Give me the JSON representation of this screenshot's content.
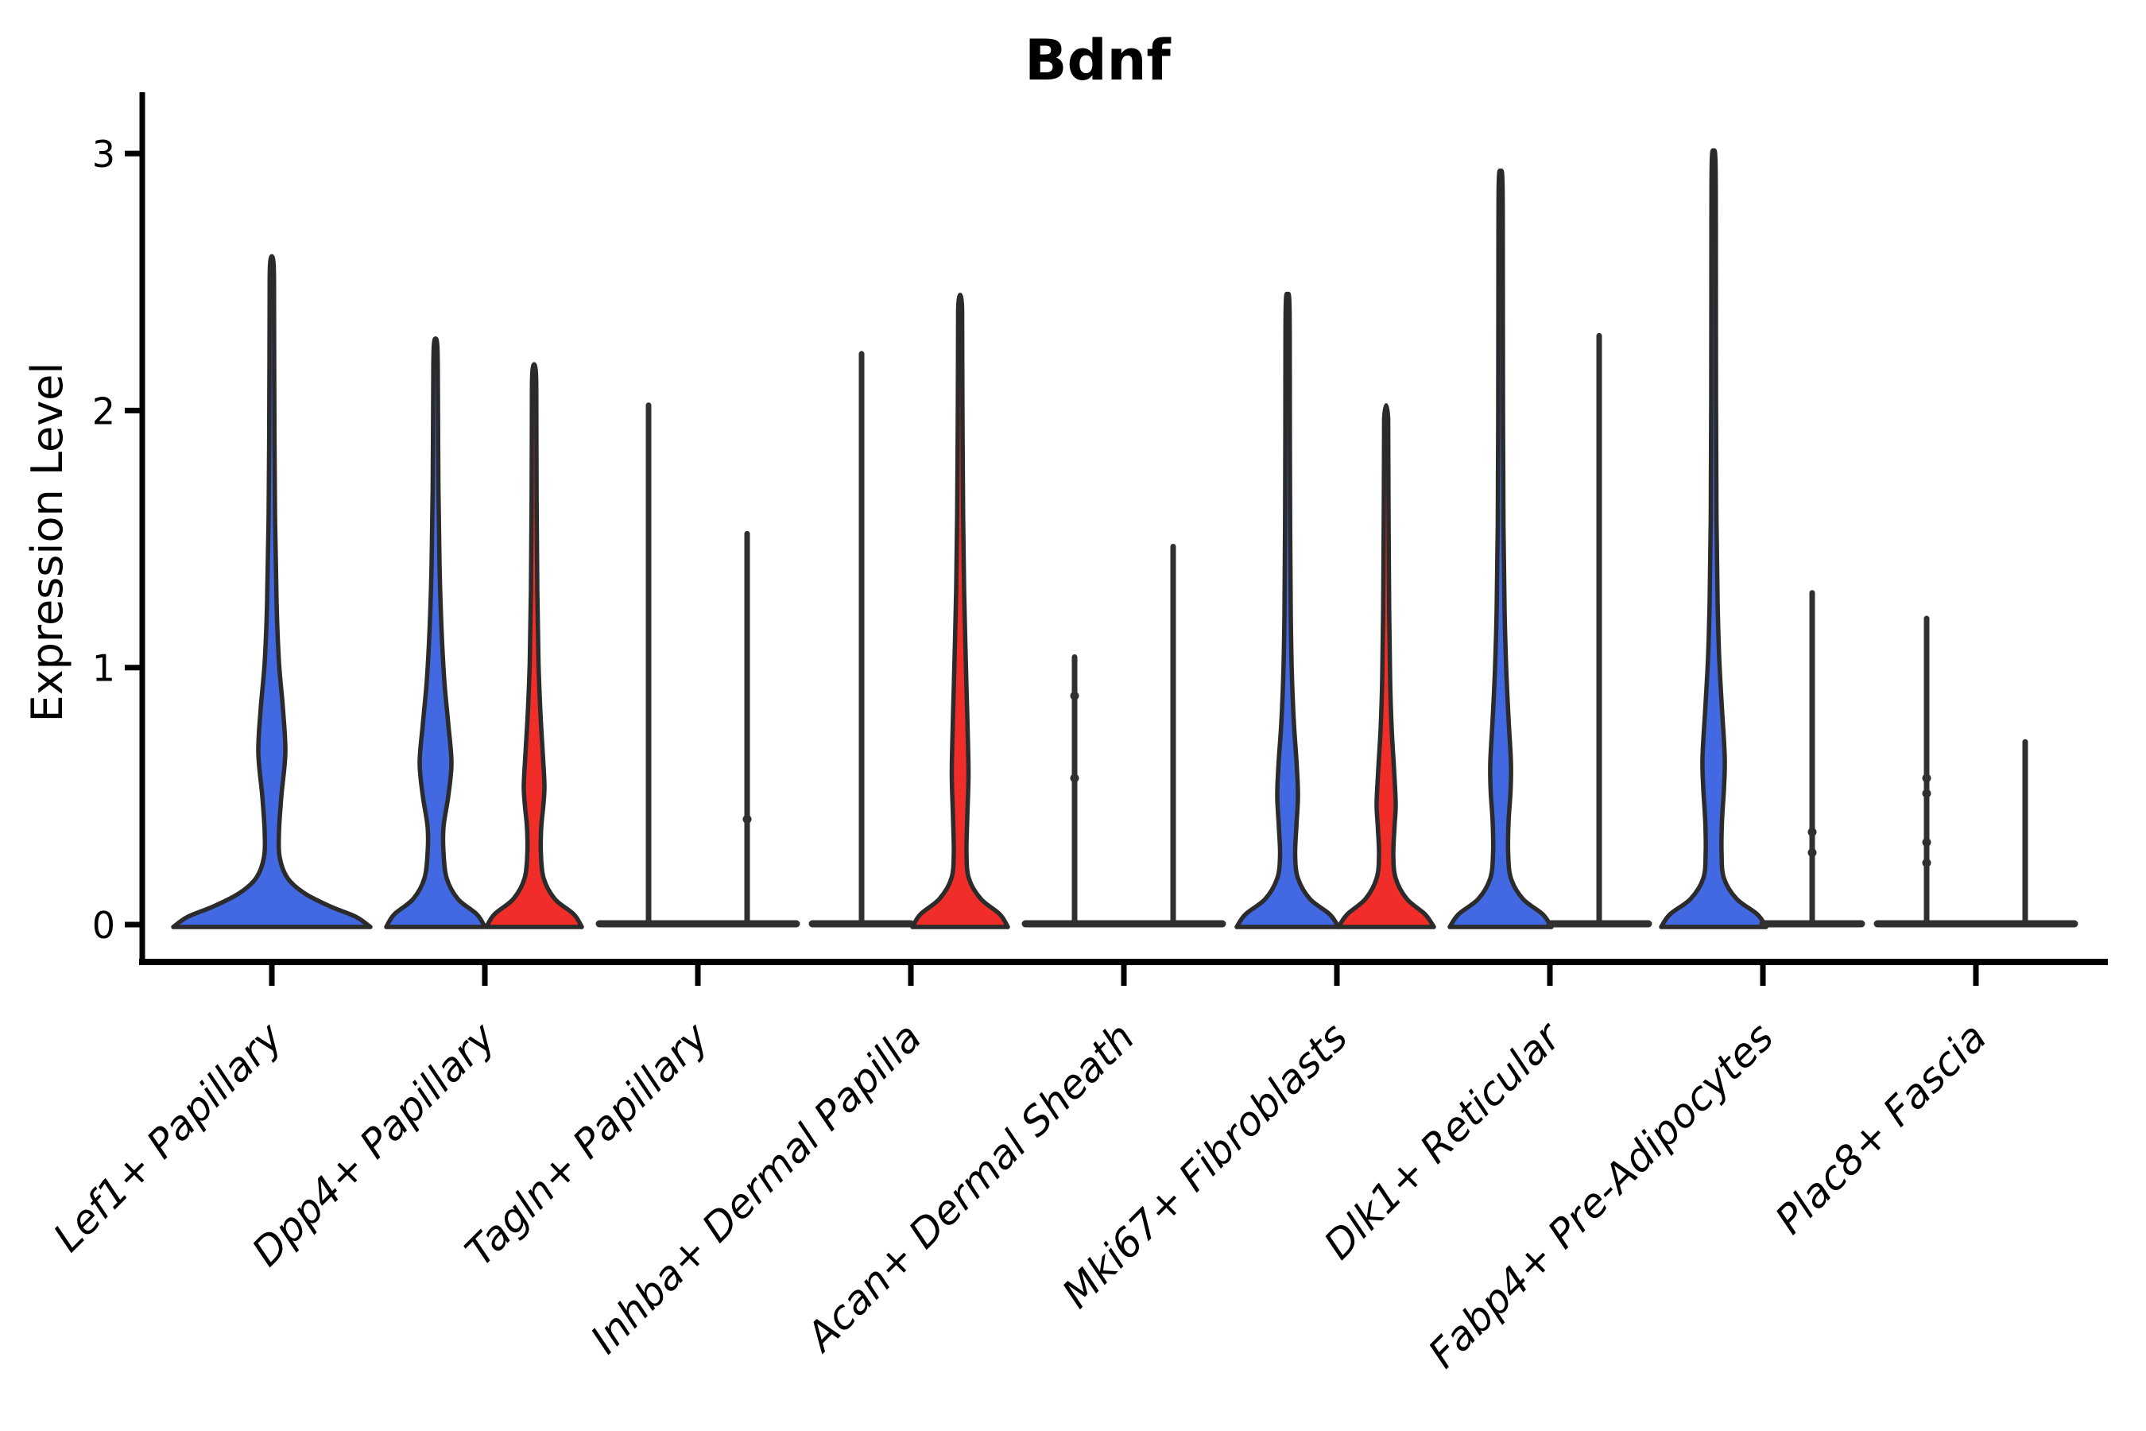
{
  "chart_data": {
    "type": "violin",
    "title": "Bdnf",
    "ylabel": "Expression Level",
    "xlabel": "",
    "yticks": [
      0,
      1,
      2,
      3
    ],
    "ylim": [
      -0.15,
      3.25
    ],
    "grid": false,
    "legend_position": "none",
    "colors": {
      "blue": "#4269E1",
      "red": "#F02D28",
      "outline": "#2B2B2B",
      "line_violin": "#303030",
      "axis": "#000000"
    },
    "categories": [
      "Lef1+ Papillary",
      "Dpp4+ Papillary",
      "Tagln+ Papillary",
      "Inhba+ Dermal Papilla",
      "Acan+ Dermal Sheath",
      "Mki67+ Fibroblasts",
      "Dlk1+ Reticular",
      "Fabp4+ Pre-Adipocytes",
      "Plac8+ Fascia"
    ],
    "violins": [
      {
        "category": "Lef1+ Papillary",
        "items": [
          {
            "pos": "center",
            "color": "blue",
            "kind": "violin",
            "peak": 2.6,
            "profile": [
              [
                0,
                124
              ],
              [
                0.03,
                106
              ],
              [
                0.07,
                74
              ],
              [
                0.12,
                42
              ],
              [
                0.18,
                20
              ],
              [
                0.26,
                10
              ],
              [
                0.36,
                9
              ],
              [
                0.5,
                12
              ],
              [
                0.67,
                17
              ],
              [
                0.84,
                14
              ],
              [
                1.02,
                9
              ],
              [
                1.25,
                6
              ],
              [
                1.6,
                4
              ],
              [
                2.0,
                3.2
              ],
              [
                2.4,
                2.8
              ],
              [
                2.56,
                2.4
              ],
              [
                2.6,
                0
              ]
            ]
          }
        ]
      },
      {
        "category": "Dpp4+ Papillary",
        "items": [
          {
            "pos": "left",
            "color": "blue",
            "kind": "violin",
            "peak": 2.28,
            "profile": [
              [
                0,
                62
              ],
              [
                0.04,
                52
              ],
              [
                0.1,
                28
              ],
              [
                0.18,
                14
              ],
              [
                0.28,
                10
              ],
              [
                0.38,
                10
              ],
              [
                0.5,
                16
              ],
              [
                0.63,
                20
              ],
              [
                0.78,
                16
              ],
              [
                0.95,
                11
              ],
              [
                1.15,
                7.5
              ],
              [
                1.4,
                5
              ],
              [
                1.7,
                3.6
              ],
              [
                2.05,
                3
              ],
              [
                2.24,
                2.4
              ],
              [
                2.28,
                0
              ]
            ]
          },
          {
            "pos": "right",
            "color": "red",
            "kind": "violin",
            "peak": 2.18,
            "profile": [
              [
                0,
                60
              ],
              [
                0.04,
                50
              ],
              [
                0.1,
                26
              ],
              [
                0.18,
                12
              ],
              [
                0.28,
                8.5
              ],
              [
                0.38,
                9
              ],
              [
                0.46,
                11.5
              ],
              [
                0.54,
                13
              ],
              [
                0.66,
                11
              ],
              [
                0.82,
                8
              ],
              [
                1.02,
                5.5
              ],
              [
                1.3,
                4
              ],
              [
                1.62,
                3.2
              ],
              [
                2.0,
                2.8
              ],
              [
                2.14,
                2.4
              ],
              [
                2.18,
                0
              ]
            ]
          }
        ]
      },
      {
        "category": "Tagln+ Papillary",
        "items": [
          {
            "pos": "left",
            "kind": "line",
            "peak": 2.03,
            "dots": []
          },
          {
            "pos": "right",
            "kind": "line",
            "peak": 1.53,
            "dots": [
              0.41
            ]
          }
        ]
      },
      {
        "category": "Inhba+ Dermal Papilla",
        "items": [
          {
            "pos": "left",
            "kind": "line",
            "peak": 2.23,
            "dots": []
          },
          {
            "pos": "right",
            "color": "red",
            "kind": "violin",
            "peak": 2.45,
            "profile": [
              [
                0,
                60
              ],
              [
                0.04,
                50
              ],
              [
                0.1,
                26
              ],
              [
                0.18,
                11
              ],
              [
                0.28,
                8
              ],
              [
                0.42,
                9
              ],
              [
                0.58,
                10.5
              ],
              [
                0.75,
                9.5
              ],
              [
                0.92,
                8
              ],
              [
                1.1,
                6.5
              ],
              [
                1.3,
                5
              ],
              [
                1.58,
                3.8
              ],
              [
                1.95,
                3
              ],
              [
                2.3,
                2.6
              ],
              [
                2.41,
                2.3
              ],
              [
                2.45,
                0
              ]
            ]
          }
        ]
      },
      {
        "category": "Acan+ Dermal Sheath",
        "items": [
          {
            "pos": "left",
            "kind": "line",
            "peak": 1.05,
            "dots": [
              0.89,
              0.57
            ]
          },
          {
            "pos": "right",
            "kind": "line",
            "peak": 1.48,
            "dots": []
          }
        ]
      },
      {
        "category": "Mki67+ Fibroblasts",
        "items": [
          {
            "pos": "left",
            "color": "blue",
            "kind": "violin",
            "peak": 2.45,
            "profile": [
              [
                0,
                64
              ],
              [
                0.04,
                53
              ],
              [
                0.1,
                28
              ],
              [
                0.18,
                13
              ],
              [
                0.27,
                9.5
              ],
              [
                0.38,
                11
              ],
              [
                0.5,
                13
              ],
              [
                0.62,
                11.5
              ],
              [
                0.78,
                8
              ],
              [
                0.96,
                5.5
              ],
              [
                1.2,
                4
              ],
              [
                1.55,
                3.2
              ],
              [
                2.0,
                2.8
              ],
              [
                2.4,
                2.4
              ],
              [
                2.45,
                0
              ]
            ]
          },
          {
            "pos": "right",
            "color": "red",
            "kind": "violin",
            "peak": 2.02,
            "profile": [
              [
                0,
                60
              ],
              [
                0.04,
                49
              ],
              [
                0.1,
                26
              ],
              [
                0.18,
                12
              ],
              [
                0.27,
                9
              ],
              [
                0.38,
                10.5
              ],
              [
                0.47,
                12
              ],
              [
                0.6,
                10
              ],
              [
                0.76,
                7
              ],
              [
                0.95,
                5
              ],
              [
                1.22,
                3.8
              ],
              [
                1.6,
                3
              ],
              [
                1.92,
                2.6
              ],
              [
                1.98,
                2.3
              ],
              [
                2.02,
                0
              ]
            ]
          }
        ]
      },
      {
        "category": "Dlk1+ Reticular",
        "items": [
          {
            "pos": "left",
            "color": "blue",
            "kind": "violin",
            "peak": 2.93,
            "profile": [
              [
                0,
                64
              ],
              [
                0.04,
                53
              ],
              [
                0.1,
                28
              ],
              [
                0.18,
                13
              ],
              [
                0.28,
                9.5
              ],
              [
                0.4,
                10
              ],
              [
                0.52,
                12.5
              ],
              [
                0.63,
                13
              ],
              [
                0.8,
                10
              ],
              [
                1.0,
                7
              ],
              [
                1.22,
                5
              ],
              [
                1.55,
                3.6
              ],
              [
                2.0,
                3
              ],
              [
                2.5,
                2.8
              ],
              [
                2.88,
                2.4
              ],
              [
                2.93,
                0
              ]
            ]
          },
          {
            "pos": "right",
            "kind": "line",
            "peak": 2.3,
            "dots": []
          }
        ]
      },
      {
        "category": "Fabp4+ Pre-Adipocytes",
        "items": [
          {
            "pos": "left",
            "color": "blue",
            "kind": "violin",
            "peak": 3.01,
            "profile": [
              [
                0,
                66
              ],
              [
                0.04,
                55
              ],
              [
                0.1,
                29
              ],
              [
                0.18,
                13
              ],
              [
                0.28,
                10
              ],
              [
                0.4,
                10.5
              ],
              [
                0.53,
                13
              ],
              [
                0.65,
                14
              ],
              [
                0.84,
                10.5
              ],
              [
                1.04,
                7
              ],
              [
                1.26,
                5
              ],
              [
                1.58,
                3.6
              ],
              [
                2.05,
                3
              ],
              [
                2.6,
                2.8
              ],
              [
                2.96,
                2.4
              ],
              [
                3.01,
                0
              ]
            ]
          },
          {
            "pos": "right",
            "kind": "line",
            "peak": 1.3,
            "dots": [
              0.36,
              0.28
            ]
          }
        ]
      },
      {
        "category": "Plac8+ Fascia",
        "items": [
          {
            "pos": "left",
            "kind": "line",
            "peak": 1.2,
            "dots": [
              0.57,
              0.51,
              0.32,
              0.24
            ]
          },
          {
            "pos": "right",
            "kind": "line",
            "peak": 0.72,
            "dots": []
          }
        ]
      }
    ]
  }
}
